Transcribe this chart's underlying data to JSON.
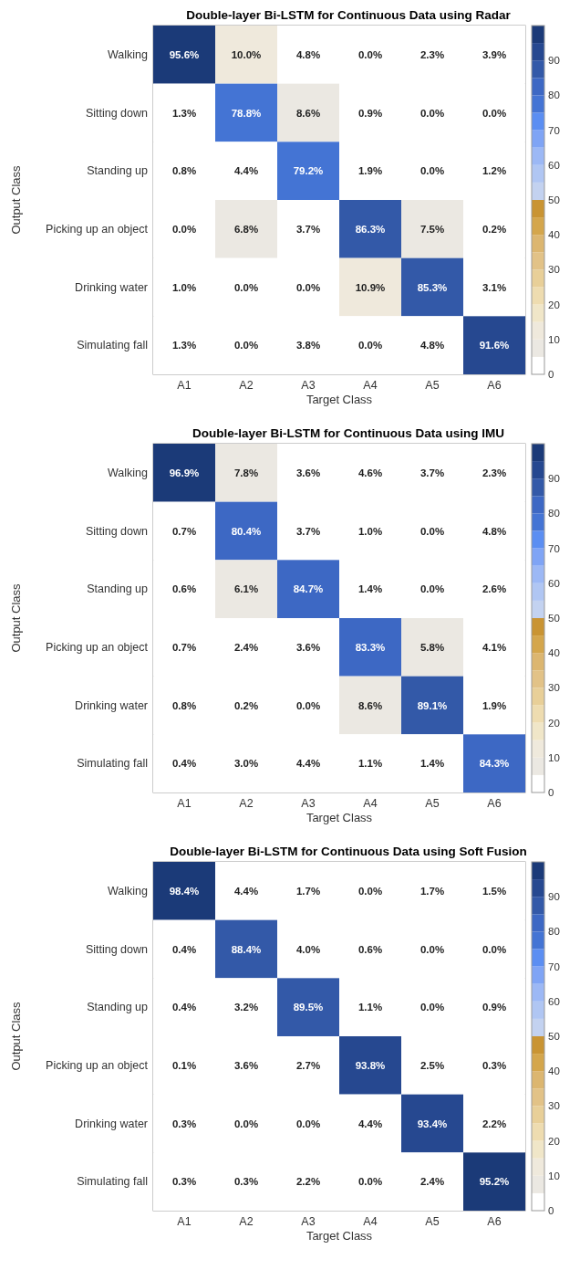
{
  "chart_data": [
    {
      "type": "heatmap",
      "title": "Double-layer Bi-LSTM for Continuous Data using Radar",
      "xlabel": "Target Class",
      "ylabel": "Output Class",
      "categories": [
        "A1",
        "A2",
        "A3",
        "A4",
        "A5",
        "A6"
      ],
      "y_categories": [
        "Walking",
        "Sitting down",
        "Standing up",
        "Picking up an object",
        "Drinking water",
        "Simulating fall"
      ],
      "cells": [
        [
          95.6,
          10.0,
          4.8,
          0.0,
          2.3,
          3.9
        ],
        [
          1.3,
          78.8,
          8.6,
          0.9,
          0.0,
          0.0
        ],
        [
          0.8,
          4.4,
          79.2,
          1.9,
          0.0,
          1.2
        ],
        [
          0.0,
          6.8,
          3.7,
          86.3,
          7.5,
          0.2
        ],
        [
          1.0,
          0.0,
          0.0,
          10.9,
          85.3,
          3.1
        ],
        [
          1.3,
          0.0,
          3.8,
          0.0,
          4.8,
          91.6
        ]
      ],
      "cell_labels": [
        [
          "95.6%",
          "10.0%",
          "4.8%",
          "0.0%",
          "2.3%",
          "3.9%"
        ],
        [
          "1.3%",
          "78.8%",
          "8.6%",
          "0.9%",
          "0.0%",
          "0.0%"
        ],
        [
          "0.8%",
          "4.4%",
          "79.2%",
          "1.9%",
          "0.0%",
          "1.2%"
        ],
        [
          "0.0%",
          "6.8%",
          "3.7%",
          "86.3%",
          "7.5%",
          "0.2%"
        ],
        [
          "1.0%",
          "0.0%",
          "0.0%",
          "10.9%",
          "85.3%",
          "3.1%"
        ],
        [
          "1.3%",
          "0.0%",
          "3.8%",
          "0.0%",
          "4.8%",
          "91.6%"
        ]
      ],
      "clim": [
        0,
        100
      ],
      "cticks": [
        0,
        10,
        20,
        30,
        40,
        50,
        60,
        70,
        80,
        90
      ],
      "colors": [
        "#ffffff",
        "#ebe8e2",
        "#efe9dc",
        "#f0e6c8",
        "#eedcb0",
        "#e8cf98",
        "#e2c287",
        "#dcb670",
        "#d4a64c",
        "#c99433",
        "#c3d2f0",
        "#b0c6f3",
        "#9cb8f5",
        "#7fa4f5",
        "#5b8ef2",
        "#4474d4",
        "#3d68c4",
        "#3359a8",
        "#264890",
        "#1b3a78"
      ]
    },
    {
      "type": "heatmap",
      "title": "Double-layer Bi-LSTM for Continuous Data using IMU",
      "xlabel": "Target Class",
      "ylabel": "Output Class",
      "categories": [
        "A1",
        "A2",
        "A3",
        "A4",
        "A5",
        "A6"
      ],
      "y_categories": [
        "Walking",
        "Sitting down",
        "Standing up",
        "Picking up an object",
        "Drinking water",
        "Simulating fall"
      ],
      "cells": [
        [
          96.9,
          7.8,
          3.6,
          4.6,
          3.7,
          2.3
        ],
        [
          0.7,
          80.4,
          3.7,
          1.0,
          0.0,
          4.8
        ],
        [
          0.6,
          6.1,
          84.7,
          1.4,
          0.0,
          2.6
        ],
        [
          0.7,
          2.4,
          3.6,
          83.3,
          5.8,
          4.1
        ],
        [
          0.8,
          0.2,
          0.0,
          8.6,
          89.1,
          1.9
        ],
        [
          0.4,
          3.0,
          4.4,
          1.1,
          1.4,
          84.3
        ]
      ],
      "cell_labels": [
        [
          "96.9%",
          "7.8%",
          "3.6%",
          "4.6%",
          "3.7%",
          "2.3%"
        ],
        [
          "0.7%",
          "80.4%",
          "3.7%",
          "1.0%",
          "0.0%",
          "4.8%"
        ],
        [
          "0.6%",
          "6.1%",
          "84.7%",
          "1.4%",
          "0.0%",
          "2.6%"
        ],
        [
          "0.7%",
          "2.4%",
          "3.6%",
          "83.3%",
          "5.8%",
          "4.1%"
        ],
        [
          "0.8%",
          "0.2%",
          "0.0%",
          "8.6%",
          "89.1%",
          "1.9%"
        ],
        [
          "0.4%",
          "3.0%",
          "4.4%",
          "1.1%",
          "1.4%",
          "84.3%"
        ]
      ],
      "clim": [
        0,
        100
      ],
      "cticks": [
        0,
        10,
        20,
        30,
        40,
        50,
        60,
        70,
        80,
        90
      ],
      "colors": [
        "#ffffff",
        "#ebe8e2",
        "#efe9dc",
        "#f0e6c8",
        "#eedcb0",
        "#e8cf98",
        "#e2c287",
        "#dcb670",
        "#d4a64c",
        "#c99433",
        "#c3d2f0",
        "#b0c6f3",
        "#9cb8f5",
        "#7fa4f5",
        "#5b8ef2",
        "#4474d4",
        "#3d68c4",
        "#3359a8",
        "#264890",
        "#1b3a78"
      ]
    },
    {
      "type": "heatmap",
      "title": "Double-layer Bi-LSTM for Continuous Data using Soft Fusion",
      "xlabel": "Target Class",
      "ylabel": "Output Class",
      "categories": [
        "A1",
        "A2",
        "A3",
        "A4",
        "A5",
        "A6"
      ],
      "y_categories": [
        "Walking",
        "Sitting down",
        "Standing up",
        "Picking up an object",
        "Drinking water",
        "Simulating fall"
      ],
      "cells": [
        [
          98.4,
          4.4,
          1.7,
          0.0,
          1.7,
          1.5
        ],
        [
          0.4,
          88.4,
          4.0,
          0.6,
          0.0,
          0.0
        ],
        [
          0.4,
          3.2,
          89.5,
          1.1,
          0.0,
          0.9
        ],
        [
          0.1,
          3.6,
          2.7,
          93.8,
          2.5,
          0.3
        ],
        [
          0.3,
          0.0,
          0.0,
          4.4,
          93.4,
          2.2
        ],
        [
          0.3,
          0.3,
          2.2,
          0.0,
          2.4,
          95.2
        ]
      ],
      "cell_labels": [
        [
          "98.4%",
          "4.4%",
          "1.7%",
          "0.0%",
          "1.7%",
          "1.5%"
        ],
        [
          "0.4%",
          "88.4%",
          "4.0%",
          "0.6%",
          "0.0%",
          "0.0%"
        ],
        [
          "0.4%",
          "3.2%",
          "89.5%",
          "1.1%",
          "0.0%",
          "0.9%"
        ],
        [
          "0.1%",
          "3.6%",
          "2.7%",
          "93.8%",
          "2.5%",
          "0.3%"
        ],
        [
          "0.3%",
          "0.0%",
          "0.0%",
          "4.4%",
          "93.4%",
          "2.2%"
        ],
        [
          "0.3%",
          "0.3%",
          "2.2%",
          "0.0%",
          "2.4%",
          "95.2%"
        ]
      ],
      "clim": [
        0,
        100
      ],
      "cticks": [
        0,
        10,
        20,
        30,
        40,
        50,
        60,
        70,
        80,
        90
      ],
      "colors": [
        "#ffffff",
        "#ebe8e2",
        "#efe9dc",
        "#f0e6c8",
        "#eedcb0",
        "#e8cf98",
        "#e2c287",
        "#dcb670",
        "#d4a64c",
        "#c99433",
        "#c3d2f0",
        "#b0c6f3",
        "#9cb8f5",
        "#7fa4f5",
        "#5b8ef2",
        "#4474d4",
        "#3d68c4",
        "#3359a8",
        "#264890",
        "#1b3a78"
      ]
    }
  ]
}
